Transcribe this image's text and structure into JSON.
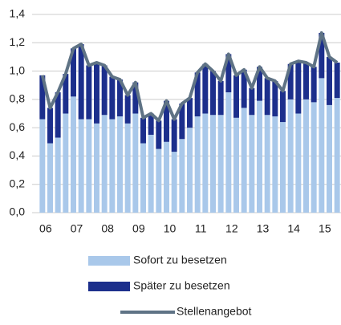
{
  "chart_data": {
    "type": "stacked-bar-line",
    "categories": [
      "06",
      null,
      null,
      null,
      "07",
      null,
      null,
      null,
      "08",
      null,
      null,
      null,
      "09",
      null,
      null,
      null,
      "10",
      null,
      null,
      null,
      "11",
      null,
      null,
      null,
      "12",
      null,
      null,
      null,
      "13",
      null,
      null,
      null,
      "14",
      null,
      null,
      null,
      "15",
      null,
      null
    ],
    "series": [
      {
        "name": "Sofort zu besetzen",
        "color": "#a9c8ea",
        "values": [
          0.66,
          0.49,
          0.53,
          0.7,
          0.82,
          0.66,
          0.66,
          0.63,
          0.69,
          0.66,
          0.68,
          0.63,
          0.7,
          0.49,
          0.55,
          0.45,
          0.5,
          0.43,
          0.52,
          0.6,
          0.68,
          0.7,
          0.69,
          0.69,
          0.85,
          0.67,
          0.74,
          0.69,
          0.79,
          0.69,
          0.68,
          0.64,
          0.8,
          0.7,
          0.8,
          0.78,
          0.95,
          0.76,
          0.81
        ]
      },
      {
        "name": "Später zu besetzen",
        "color": "#1c2f8c",
        "values": [
          0.31,
          0.25,
          0.32,
          0.28,
          0.34,
          0.53,
          0.38,
          0.43,
          0.35,
          0.3,
          0.26,
          0.2,
          0.22,
          0.18,
          0.15,
          0.2,
          0.29,
          0.23,
          0.25,
          0.21,
          0.31,
          0.35,
          0.31,
          0.24,
          0.27,
          0.3,
          0.27,
          0.19,
          0.24,
          0.26,
          0.25,
          0.22,
          0.25,
          0.37,
          0.26,
          0.25,
          0.32,
          0.34,
          0.25
        ]
      },
      {
        "name": "Stellenangebot",
        "color": "#5f7385",
        "type": "line",
        "values": [
          0.97,
          0.74,
          0.85,
          0.98,
          1.16,
          1.19,
          1.04,
          1.06,
          1.04,
          0.96,
          0.94,
          0.83,
          0.92,
          0.67,
          0.7,
          0.65,
          0.79,
          0.66,
          0.77,
          0.81,
          0.99,
          1.05,
          1.0,
          0.93,
          1.12,
          0.97,
          1.01,
          0.88,
          1.03,
          0.95,
          0.93,
          0.86,
          1.05,
          1.07,
          1.06,
          1.03,
          1.27,
          1.1,
          1.06
        ]
      }
    ],
    "ylim": [
      0,
      1.4
    ],
    "yticks": [
      {
        "value": 0,
        "label": "0,0"
      },
      {
        "value": 0.2,
        "label": "0,2"
      },
      {
        "value": 0.4,
        "label": "0,4"
      },
      {
        "value": 0.6,
        "label": "0,6"
      },
      {
        "value": 0.8,
        "label": "0,8"
      },
      {
        "value": 1.0,
        "label": "1,0"
      },
      {
        "value": 1.2,
        "label": "1,2"
      },
      {
        "value": 1.4,
        "label": "1,4"
      }
    ],
    "grid": true
  }
}
